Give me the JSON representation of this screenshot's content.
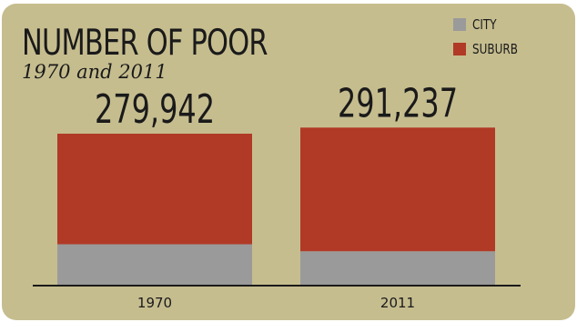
{
  "chart_data": {
    "type": "bar",
    "stacked": true,
    "title": "NUMBER OF POOR",
    "subtitle": "1970 and 2011",
    "categories": [
      "1970",
      "2011"
    ],
    "series": [
      {
        "name": "CITY",
        "color": "#9a9a9a",
        "values": [
          75000,
          62000
        ]
      },
      {
        "name": "SUBURB",
        "color": "#b03a26",
        "values": [
          204942,
          229237
        ]
      }
    ],
    "totals": [
      "279,942",
      "291,237"
    ],
    "total_values": [
      279942,
      291237
    ],
    "ylim": [
      0,
      290000
    ],
    "legend": "top-right",
    "grid": false
  },
  "colors": {
    "background": "#c6bd8f",
    "axis": "#1a1a1a",
    "text": "#1a1a1a"
  }
}
